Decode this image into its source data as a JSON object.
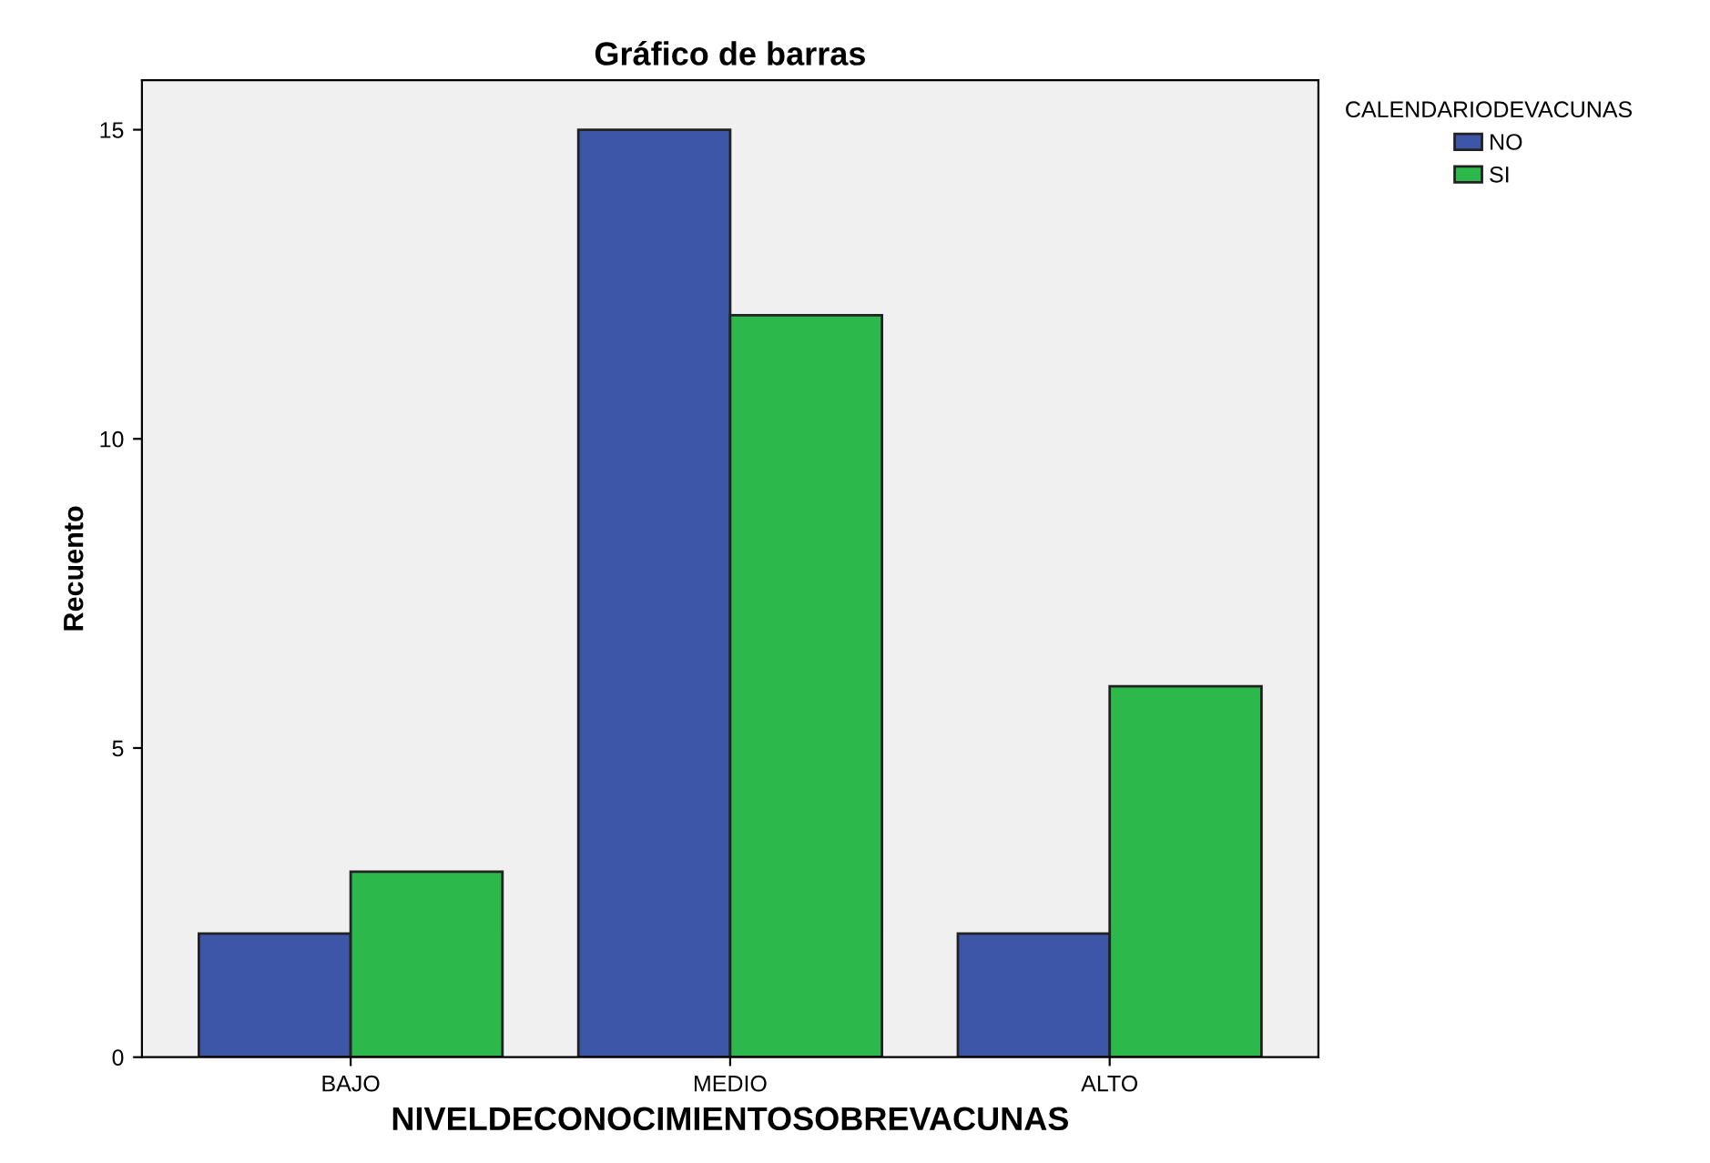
{
  "chart_data": {
    "type": "bar",
    "title": "Gráfico de barras",
    "xlabel": "NIVELDECONOCIMIENTOSOBREVACUNAS",
    "ylabel": "Recuento",
    "legend_title": "CALENDARIODEVACUNAS",
    "categories": [
      "BAJO",
      "MEDIO",
      "ALTO"
    ],
    "series": [
      {
        "name": "NO",
        "color": "#3d56a8",
        "values": [
          2,
          15,
          2
        ]
      },
      {
        "name": "SI",
        "color": "#2db84b",
        "values": [
          3,
          12,
          6
        ]
      }
    ],
    "ylim": [
      0,
      15.8
    ],
    "yticks": [
      0,
      5,
      10,
      15
    ],
    "grid": false,
    "legend": "top right"
  }
}
